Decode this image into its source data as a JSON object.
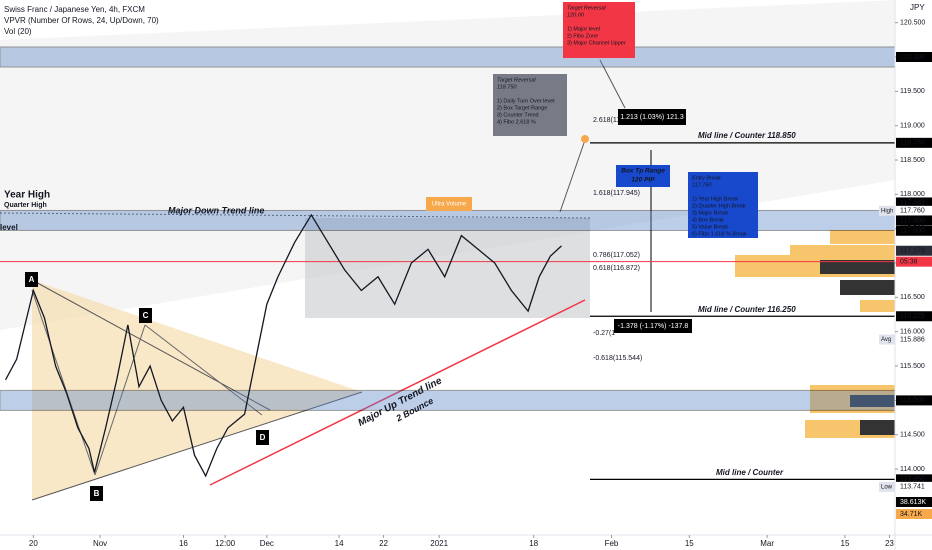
{
  "header": {
    "title": "Swiss Franc / Japanese Yen, 4h, FXCM",
    "indicator": "VPVR (Number Of Rows, 24, Up/Down, 70)",
    "volume": "Vol (20)",
    "currency": "JPY"
  },
  "chart_data": {
    "type": "line",
    "color": "#131722",
    "x": [
      -5,
      -3,
      0,
      2,
      4,
      6,
      8,
      10,
      11,
      13,
      15,
      17,
      19,
      21,
      23,
      25,
      27,
      29,
      31,
      33,
      35,
      38,
      40,
      42,
      44,
      47,
      50,
      53,
      56,
      59,
      62,
      65,
      68,
      71,
      74,
      77,
      80,
      83,
      86,
      89,
      91,
      93,
      95
    ],
    "values": [
      115.3,
      115.6,
      116.6,
      116.2,
      115.5,
      115.1,
      114.6,
      114.3,
      113.95,
      114.6,
      115.3,
      116.1,
      115.2,
      115.5,
      115.0,
      114.7,
      114.9,
      114.2,
      113.9,
      114.3,
      114.6,
      114.8,
      115.6,
      116.4,
      116.8,
      117.3,
      117.7,
      117.3,
      116.9,
      116.6,
      116.8,
      116.4,
      117.0,
      117.2,
      116.8,
      117.4,
      117.2,
      117.0,
      116.6,
      116.3,
      116.8,
      117.1,
      117.25
    ],
    "xlim": [
      -6,
      155
    ],
    "xticks": [
      {
        "value": 0,
        "label": "20"
      },
      {
        "value": 12,
        "label": "Nov"
      },
      {
        "value": 27,
        "label": "16"
      },
      {
        "value": 34.5,
        "label": "12:00"
      },
      {
        "value": 42,
        "label": "Dec"
      },
      {
        "value": 55,
        "label": "14"
      },
      {
        "value": 63,
        "label": "22"
      },
      {
        "value": 73,
        "label": "2021"
      },
      {
        "value": 90,
        "label": "18"
      },
      {
        "value": 104,
        "label": "Feb"
      },
      {
        "value": 118,
        "label": "15"
      },
      {
        "value": 132,
        "label": "Mar"
      },
      {
        "value": 146,
        "label": "15"
      },
      {
        "value": 154,
        "label": "23"
      }
    ],
    "ylim": [
      113.04,
      120.83
    ],
    "yticks": [
      {
        "value": 114,
        "label": "114.000"
      },
      {
        "value": 114.5,
        "label": "114.500"
      },
      {
        "value": 115,
        "label": "115.000"
      },
      {
        "value": 115.5,
        "label": "115.500"
      },
      {
        "value": 116,
        "label": "116.000"
      },
      {
        "value": 116.5,
        "label": "116.500"
      },
      {
        "value": 117,
        "label": "117.000"
      },
      {
        "value": 117.5,
        "label": "117.500"
      },
      {
        "value": 118,
        "label": "118.000"
      },
      {
        "value": 118.5,
        "label": "118.500"
      },
      {
        "value": 119,
        "label": "119.000"
      },
      {
        "value": 119.5,
        "label": "119.500"
      },
      {
        "value": 120,
        "label": "120.000"
      },
      {
        "value": 120.5,
        "label": "120.500"
      }
    ],
    "price_labels": [
      {
        "value": 120,
        "label": "120.000",
        "color": "#000000",
        "line": "band"
      },
      {
        "value": 118.75,
        "label": "118.750",
        "color": "#000000",
        "line": "solid"
      },
      {
        "value": 117.882,
        "label": "117.882",
        "color": "#000000"
      },
      {
        "value": 117.763,
        "label": "117.763",
        "color": "#000000"
      },
      {
        "value": 117.76,
        "label": "117.760",
        "tag": "High",
        "color": "#ffffff"
      },
      {
        "value": 117.62,
        "label": "117.500",
        "color": "#000000",
        "line": "band"
      },
      {
        "value": 117.47,
        "label": "117.500",
        "color": "#000000"
      },
      {
        "value": 117.179,
        "label": "117.179",
        "color": "#2a2e39"
      },
      {
        "value": 117.02,
        "label": "05:38",
        "color": "#f23645",
        "line": "red"
      },
      {
        "value": 116.225,
        "label": "116.225",
        "color": "#000000",
        "line": "solid"
      },
      {
        "value": 115.886,
        "label": "115.886",
        "tag": "Avg",
        "color": "#ffffff"
      },
      {
        "value": 115.0,
        "label": "115.000",
        "color": "#000000",
        "line": "band"
      },
      {
        "value": 113.85,
        "label": "113.850",
        "color": "#000000",
        "line": "solid"
      },
      {
        "value": 113.741,
        "label": "113.741",
        "tag": "Low",
        "color": "#ffffff"
      }
    ],
    "volume_labels": [
      "38.613K",
      "34.71K"
    ],
    "annotations": {
      "year_high": "Year High",
      "quarter_high": "Quarter High",
      "level": "level",
      "down_trend": "Major Down Trend line",
      "ultra_volume": "Ultra Volume",
      "up_trend": "Major Up Trend line",
      "bounce": "2 Bounce",
      "a": "A",
      "b": "B",
      "c": "C",
      "d": "D",
      "mid1": "Mid line / Counter  118.850",
      "mid2": "Mid line / Counter  116.250",
      "mid3": "Mid line / Counter",
      "fib1": "2.618(11",
      "fib2": "1.618(117.945)",
      "fib3": "0.786(117.052)",
      "fib4": "0.618(116.872)",
      "fib5": "-0.27(1",
      "fib6": "-0.618(115.544)",
      "box_range": [
        "Box Tp Range",
        "120 PIP"
      ],
      "measure_up": "1.213 (1.03%) 121.3",
      "measure_down": "-1.378 (-1.17%) -137.8",
      "target_red": [
        "Target Reversal",
        "120.00",
        "",
        "1) Major level",
        "2) Fibo Zone",
        "3) Major Channel Upper"
      ],
      "target_gray": [
        "Target Reversal",
        "118.750",
        "",
        "1) Daily Turn Over level",
        "2) Box Target Range",
        "3) Counter Trend",
        "4) Fibo 2.618 %"
      ],
      "entry": [
        "Entry Break",
        "117.750",
        "",
        "1) Year High Break",
        "2) Quarter High Break",
        "3) Major Break",
        "4) Box Break",
        "5) Value Break",
        "6) Fibo 1.618 % Break"
      ]
    }
  }
}
